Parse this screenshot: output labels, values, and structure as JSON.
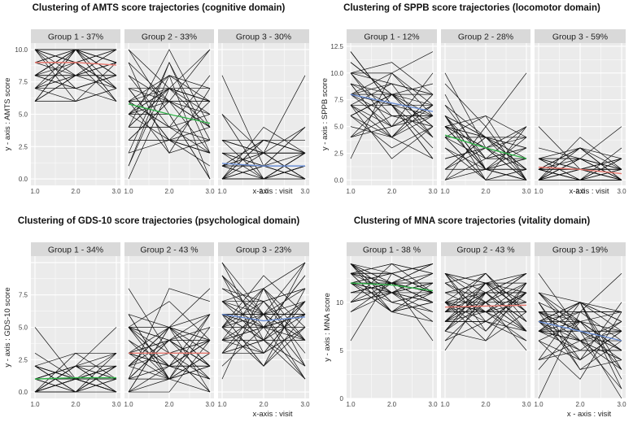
{
  "figure": {
    "bg_panel": "#ebebeb",
    "bg_strip": "#d9d9d9",
    "grid_color": "#ffffff",
    "line_color": "#111111",
    "group_colors": [
      "#e8776e",
      "#32b44a",
      "#6b8fd6"
    ]
  },
  "chart_data": [
    {
      "type": "line",
      "title": "Clustering of AMTS score trajectories (cognitive domain)",
      "ylabel": "y - axis : AMTS score",
      "xlabel": "x-axis : visit",
      "xlim": [
        1.0,
        3.0
      ],
      "ylim": [
        -0.5,
        10.5
      ],
      "xticks": [
        "1.0",
        "2.0",
        "3.0"
      ],
      "yticks": [
        0.0,
        2.5,
        5.0,
        7.5,
        10.0
      ],
      "ytick_labels": [
        "0.0",
        "2.5",
        "5.0",
        "7.5",
        "10.0"
      ],
      "groups": [
        {
          "label": "Group 1 - 37%",
          "mean": [
            9.0,
            9.0,
            8.8
          ],
          "mean_color": "#e8776e",
          "range": [
            6,
            10
          ],
          "n": 40,
          "spread": 2.0,
          "seed": 11
        },
        {
          "label": "Group 2 - 33%",
          "mean": [
            5.8,
            5.0,
            4.3
          ],
          "mean_color": "#32b44a",
          "range": [
            0,
            10
          ],
          "n": 36,
          "spread": 2.4,
          "seed": 12
        },
        {
          "label": "Group 3 - 30%",
          "mean": [
            1.2,
            1.0,
            1.0
          ],
          "mean_color": "#6b8fd6",
          "range": [
            0,
            8
          ],
          "n": 34,
          "spread": 1.4,
          "seed": 13
        }
      ]
    },
    {
      "type": "line",
      "title": "Clustering of SPPB score trajectories (locomotor domain)",
      "ylabel": "y - axis : SPPB score",
      "xlabel": "x-axis : visit",
      "xlim": [
        1.0,
        3.0
      ],
      "ylim": [
        -0.5,
        12.8
      ],
      "xticks": [
        "1.0",
        "2.0",
        "3.0"
      ],
      "yticks": [
        0.0,
        2.5,
        5.0,
        7.5,
        10.0,
        12.5
      ],
      "ytick_labels": [
        "0.0",
        "2.5",
        "5.0",
        "7.5",
        "10.0",
        "12.5"
      ],
      "groups": [
        {
          "label": "Group 1 - 12%",
          "mean": [
            8.0,
            7.2,
            6.4
          ],
          "mean_color": "#6b8fd6",
          "range": [
            2,
            12
          ],
          "n": 34,
          "spread": 2.3,
          "seed": 21
        },
        {
          "label": "Group 2 - 28%",
          "mean": [
            4.2,
            3.0,
            2.0
          ],
          "mean_color": "#32b44a",
          "range": [
            0,
            10
          ],
          "n": 36,
          "spread": 1.8,
          "seed": 22
        },
        {
          "label": "Group 3 - 59%",
          "mean": [
            1.2,
            1.0,
            0.6
          ],
          "mean_color": "#e8776e",
          "range": [
            0,
            5
          ],
          "n": 36,
          "spread": 1.1,
          "seed": 23
        }
      ]
    },
    {
      "type": "line",
      "title": "Clustering of GDS-10 score trajectories (psychological domain)",
      "ylabel": "y - axis : GDS-10 score",
      "xlabel": "x-axis : visit",
      "xlim": [
        1.0,
        3.0
      ],
      "ylim": [
        -0.5,
        10.5
      ],
      "xticks": [
        "1.0",
        "2.0",
        "3.0"
      ],
      "yticks": [
        0.0,
        2.5,
        5.0,
        7.5
      ],
      "ytick_labels": [
        "0.0",
        "2.5",
        "5.0",
        "7.5"
      ],
      "groups": [
        {
          "label": "Group 1 - 34%",
          "mean": [
            1.0,
            1.1,
            1.1
          ],
          "mean_color": "#32b44a",
          "range": [
            0,
            5
          ],
          "n": 32,
          "spread": 1.0,
          "seed": 31
        },
        {
          "label": "Group 2 - 43 %",
          "mean": [
            3.0,
            3.0,
            3.0
          ],
          "mean_color": "#e8776e",
          "range": [
            0,
            8
          ],
          "n": 40,
          "spread": 1.8,
          "seed": 32
        },
        {
          "label": "Group 3 - 23%",
          "mean": [
            6.0,
            5.5,
            5.8
          ],
          "mean_color": "#6b8fd6",
          "range": [
            1,
            10
          ],
          "n": 40,
          "spread": 2.0,
          "seed": 33
        }
      ]
    },
    {
      "type": "line",
      "title": "Clustering of MNA score trajectories (vitality domain)",
      "ylabel": "y - axis : MNA score",
      "xlabel": "x - axis : visit",
      "xlim": [
        1.0,
        3.0
      ],
      "ylim": [
        0,
        14.8
      ],
      "xticks": [
        "1.0",
        "2.0",
        "3.0"
      ],
      "yticks": [
        0,
        5,
        10
      ],
      "ytick_labels": [
        "0",
        "5",
        "10"
      ],
      "groups": [
        {
          "label": "Group 1 - 38 %",
          "mean": [
            12.0,
            11.8,
            11.2
          ],
          "mean_color": "#32b44a",
          "range": [
            6,
            14
          ],
          "n": 40,
          "spread": 1.4,
          "seed": 41
        },
        {
          "label": "Group 2 - 43 %",
          "mean": [
            9.5,
            9.6,
            9.7
          ],
          "mean_color": "#e8776e",
          "range": [
            5,
            13
          ],
          "n": 44,
          "spread": 1.8,
          "seed": 42
        },
        {
          "label": "Group 3 - 19%",
          "mean": [
            8.0,
            7.0,
            6.0
          ],
          "mean_color": "#6b8fd6",
          "range": [
            0,
            13
          ],
          "n": 40,
          "spread": 2.2,
          "seed": 43
        }
      ]
    }
  ]
}
